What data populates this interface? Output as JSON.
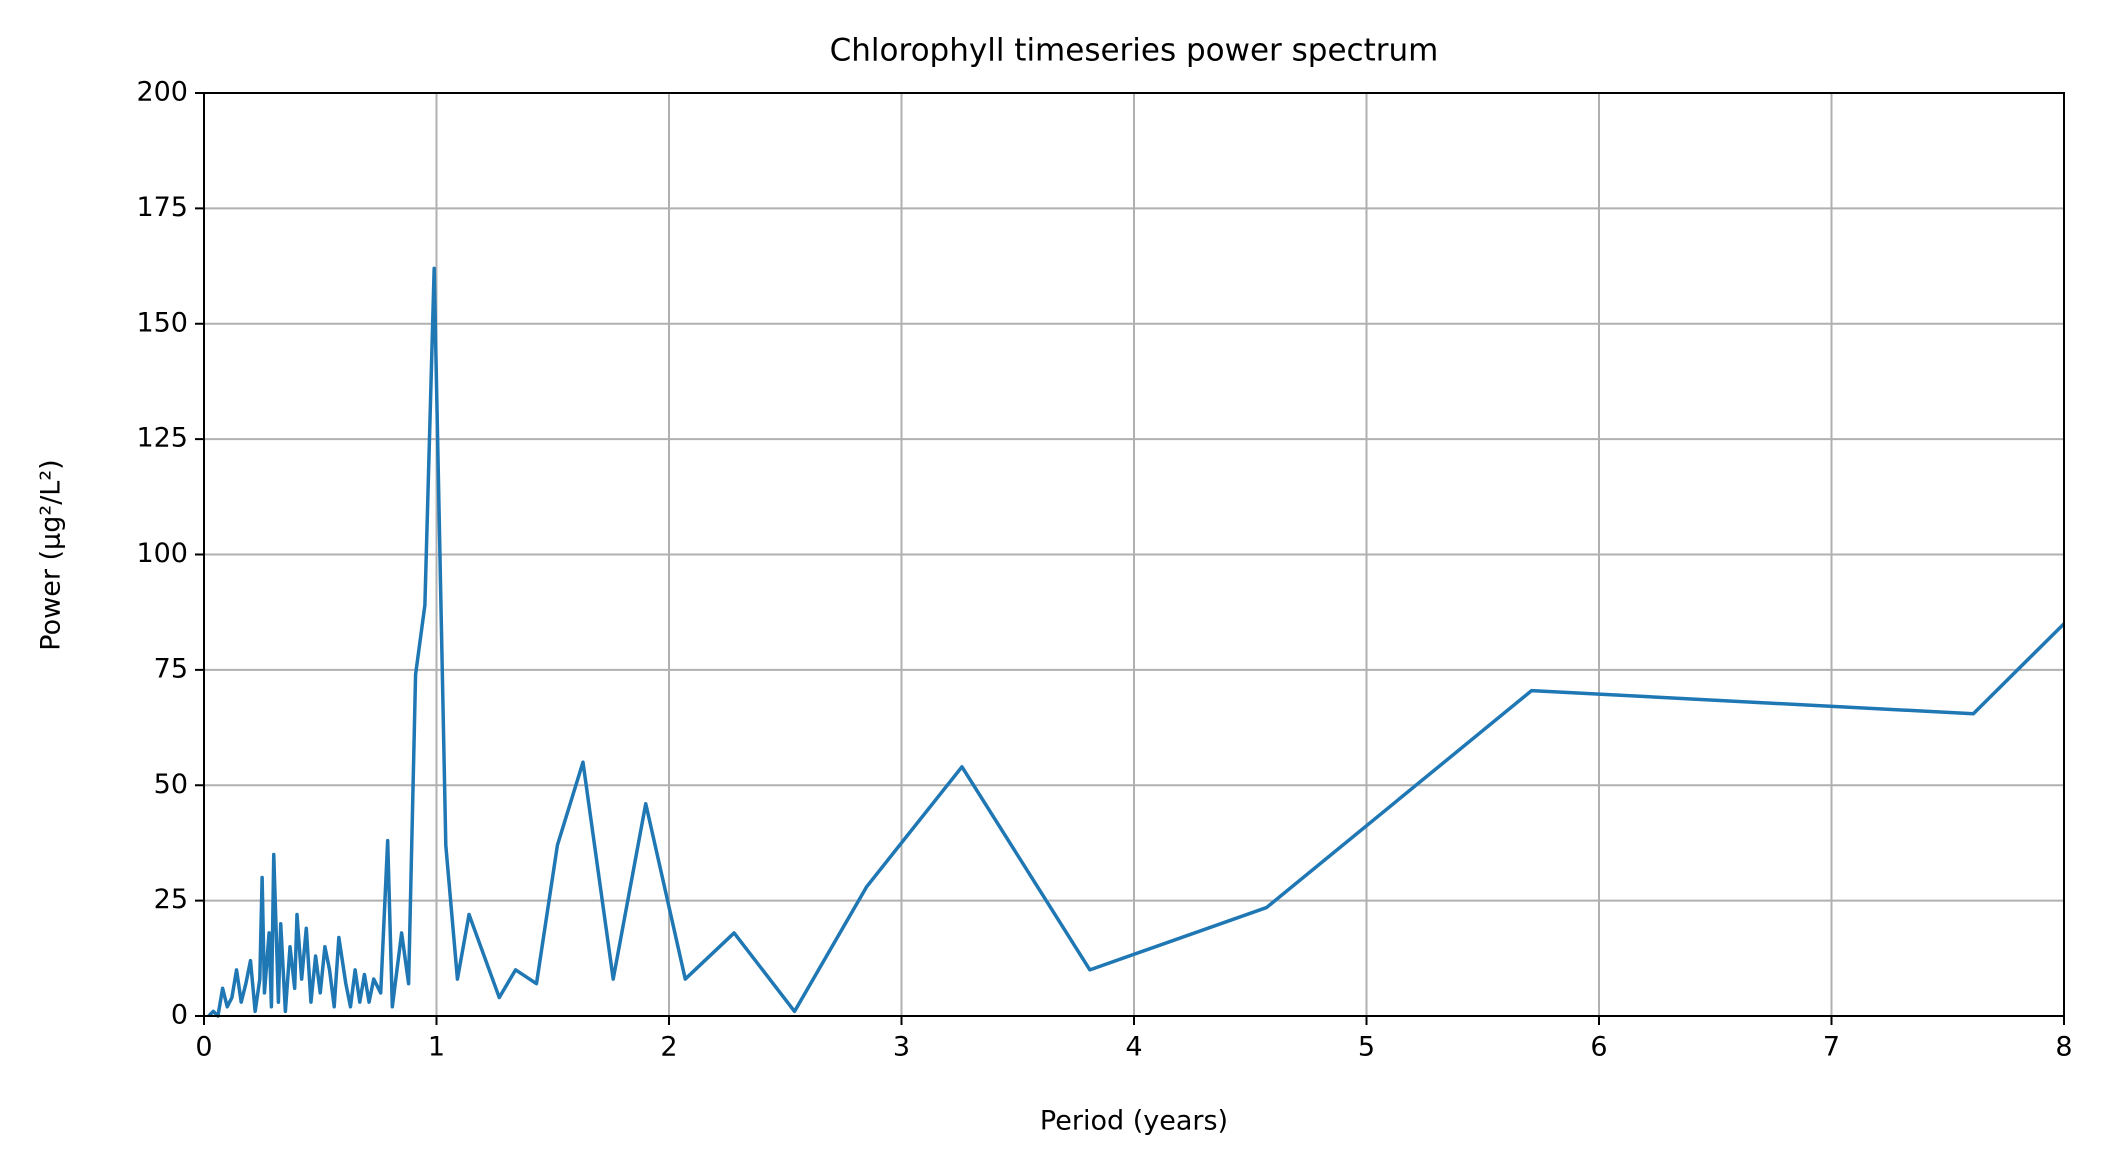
{
  "chart_data": {
    "type": "line",
    "title": "Chlorophyll timeseries power spectrum",
    "x_label": "Period (years)",
    "y_label": "Power (μg²/L²)",
    "series": [
      {
        "name": "Power",
        "color": "#1f77b4",
        "x": [
          0.02,
          0.04,
          0.06,
          0.08,
          0.1,
          0.12,
          0.14,
          0.16,
          0.18,
          0.2,
          0.22,
          0.24,
          0.25,
          0.26,
          0.28,
          0.29,
          0.3,
          0.32,
          0.33,
          0.35,
          0.37,
          0.39,
          0.4,
          0.42,
          0.44,
          0.46,
          0.48,
          0.5,
          0.52,
          0.54,
          0.56,
          0.58,
          0.61,
          0.63,
          0.65,
          0.67,
          0.69,
          0.71,
          0.73,
          0.76,
          0.79,
          0.81,
          0.85,
          0.88,
          0.91,
          0.95,
          0.99,
          1.04,
          1.09,
          1.14,
          1.27,
          1.34,
          1.43,
          1.52,
          1.63,
          1.76,
          1.9,
          2.07,
          2.28,
          2.54,
          2.85,
          3.26,
          3.81,
          4.57,
          5.71,
          7.61,
          8
        ],
        "values": [
          0,
          1,
          0,
          6,
          2,
          4,
          10,
          3,
          7,
          12,
          1,
          8,
          30,
          5,
          18,
          2,
          35,
          3,
          20,
          1,
          15,
          6,
          22,
          8,
          19,
          3,
          13,
          5,
          15,
          10,
          2,
          17,
          7,
          2,
          10,
          3,
          9,
          3,
          8,
          5,
          38,
          2,
          18,
          7,
          74,
          89,
          162,
          37,
          8,
          22,
          4,
          10,
          7,
          37,
          55,
          8,
          46,
          8,
          18,
          1,
          28,
          54,
          10,
          23.5,
          70.5,
          65.5,
          85
        ]
      }
    ],
    "xlim": [
      0,
      8
    ],
    "xticks": [
      0,
      1,
      2,
      3,
      4,
      5,
      6,
      7,
      8
    ],
    "ylim": [
      0,
      200
    ],
    "yticks": [
      0,
      25,
      50,
      75,
      100,
      125,
      150,
      175,
      200
    ],
    "grid": true
  }
}
